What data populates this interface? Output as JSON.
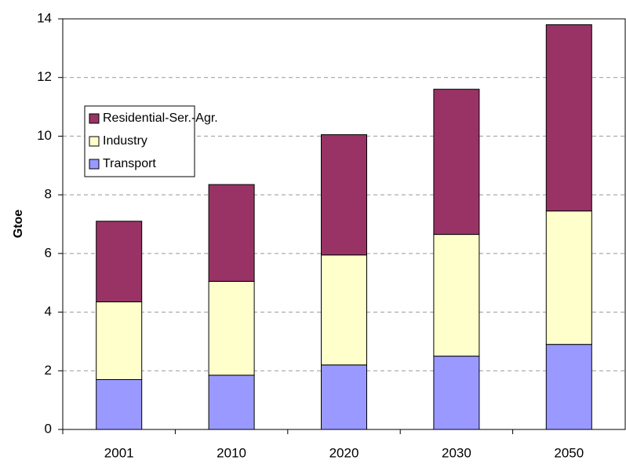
{
  "chart_data": {
    "type": "stacked_bar",
    "y_label": "Gtoe",
    "categories": [
      "2001",
      "2010",
      "2020",
      "2030",
      "2050"
    ],
    "series": [
      {
        "name": "Transport",
        "color": "#9999ff",
        "values": [
          1.7,
          1.85,
          2.2,
          2.5,
          2.9
        ]
      },
      {
        "name": "Industry",
        "color": "#ffffcc",
        "values": [
          2.65,
          3.2,
          3.75,
          4.15,
          4.55
        ]
      },
      {
        "name": "Residential-Ser.-Agr.",
        "color": "#993366",
        "values": [
          2.75,
          3.3,
          4.1,
          4.95,
          6.35
        ]
      }
    ],
    "ylim": [
      0,
      14
    ],
    "yticks": [
      0,
      2,
      4,
      6,
      8,
      10,
      12,
      14
    ],
    "grid": true,
    "legend": "upper left"
  }
}
